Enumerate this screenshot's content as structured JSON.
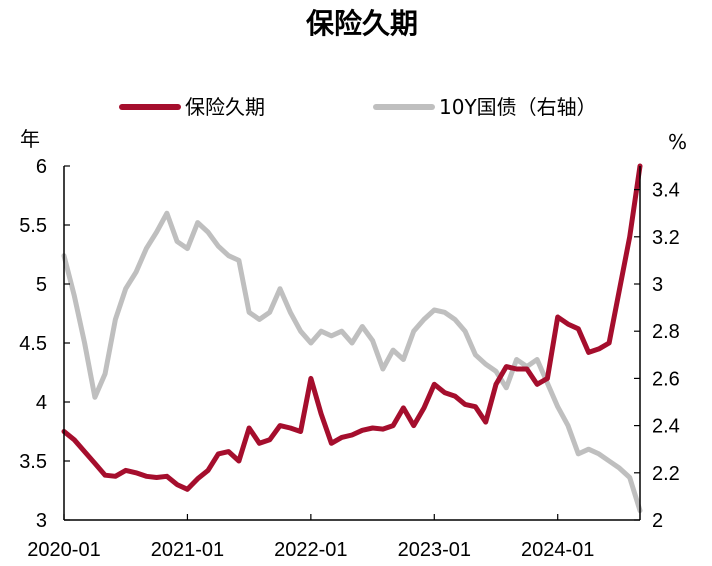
{
  "chart_data": {
    "type": "line",
    "title": "保险久期",
    "left_axis": {
      "unit": "年",
      "ylim": [
        3,
        6
      ],
      "ticks": [
        "3",
        "3.5",
        "4",
        "4.5",
        "5",
        "5.5",
        "6"
      ],
      "tick_values": [
        3,
        3.5,
        4,
        4.5,
        5,
        5.5,
        6
      ]
    },
    "right_axis": {
      "unit": "%",
      "ylim": [
        2,
        3.5
      ],
      "ticks": [
        "2",
        "2.2",
        "2.4",
        "2.6",
        "2.8",
        "3",
        "3.2",
        "3.4"
      ],
      "tick_values": [
        2,
        2.2,
        2.4,
        2.6,
        2.8,
        3,
        3.2,
        3.4
      ]
    },
    "x_axis": {
      "xlim": [
        "2020-01",
        "2024-09"
      ],
      "ticks": [
        "2020-01",
        "2021-01",
        "2022-01",
        "2023-01",
        "2024-01"
      ],
      "tick_values": [
        "2020-01",
        "2021-01",
        "2022-01",
        "2023-01",
        "2024-01"
      ]
    },
    "legend": {
      "placement": "top"
    },
    "grid": false,
    "series": [
      {
        "name": "保险久期",
        "axis": "left",
        "color": "#A50E2D",
        "points": [
          [
            "2020-01",
            3.75
          ],
          [
            "2020-02",
            3.68
          ],
          [
            "2020-03",
            3.58
          ],
          [
            "2020-04",
            3.48
          ],
          [
            "2020-05",
            3.38
          ],
          [
            "2020-06",
            3.37
          ],
          [
            "2020-07",
            3.42
          ],
          [
            "2020-08",
            3.4
          ],
          [
            "2020-09",
            3.37
          ],
          [
            "2020-10",
            3.36
          ],
          [
            "2020-11",
            3.37
          ],
          [
            "2020-12",
            3.3
          ],
          [
            "2021-01",
            3.26
          ],
          [
            "2021-02",
            3.35
          ],
          [
            "2021-03",
            3.42
          ],
          [
            "2021-04",
            3.56
          ],
          [
            "2021-05",
            3.58
          ],
          [
            "2021-06",
            3.5
          ],
          [
            "2021-07",
            3.78
          ],
          [
            "2021-08",
            3.65
          ],
          [
            "2021-09",
            3.68
          ],
          [
            "2021-10",
            3.8
          ],
          [
            "2021-11",
            3.78
          ],
          [
            "2021-12",
            3.75
          ],
          [
            "2022-01",
            4.2
          ],
          [
            "2022-02",
            3.9
          ],
          [
            "2022-03",
            3.65
          ],
          [
            "2022-04",
            3.7
          ],
          [
            "2022-05",
            3.72
          ],
          [
            "2022-06",
            3.76
          ],
          [
            "2022-07",
            3.78
          ],
          [
            "2022-08",
            3.77
          ],
          [
            "2022-09",
            3.8
          ],
          [
            "2022-10",
            3.95
          ],
          [
            "2022-11",
            3.8
          ],
          [
            "2022-12",
            3.95
          ],
          [
            "2023-01",
            4.15
          ],
          [
            "2023-02",
            4.08
          ],
          [
            "2023-03",
            4.05
          ],
          [
            "2023-04",
            3.98
          ],
          [
            "2023-05",
            3.96
          ],
          [
            "2023-06",
            3.83
          ],
          [
            "2023-07",
            4.15
          ],
          [
            "2023-08",
            4.3
          ],
          [
            "2023-09",
            4.28
          ],
          [
            "2023-10",
            4.28
          ],
          [
            "2023-11",
            4.15
          ],
          [
            "2023-12",
            4.2
          ],
          [
            "2024-01",
            4.72
          ],
          [
            "2024-02",
            4.66
          ],
          [
            "2024-03",
            4.62
          ],
          [
            "2024-04",
            4.42
          ],
          [
            "2024-05",
            4.45
          ],
          [
            "2024-06",
            4.5
          ],
          [
            "2024-07",
            4.95
          ],
          [
            "2024-08",
            5.4
          ],
          [
            "2024-09",
            6.0
          ]
        ]
      },
      {
        "name": "10Y国债（右轴）",
        "axis": "right",
        "color": "#BFBFBF",
        "points": [
          [
            "2020-01",
            3.12
          ],
          [
            "2020-02",
            2.95
          ],
          [
            "2020-03",
            2.75
          ],
          [
            "2020-04",
            2.52
          ],
          [
            "2020-05",
            2.62
          ],
          [
            "2020-06",
            2.85
          ],
          [
            "2020-07",
            2.98
          ],
          [
            "2020-08",
            3.05
          ],
          [
            "2020-09",
            3.15
          ],
          [
            "2020-10",
            3.22
          ],
          [
            "2020-11",
            3.3
          ],
          [
            "2020-12",
            3.18
          ],
          [
            "2021-01",
            3.15
          ],
          [
            "2021-02",
            3.26
          ],
          [
            "2021-03",
            3.22
          ],
          [
            "2021-04",
            3.16
          ],
          [
            "2021-05",
            3.12
          ],
          [
            "2021-06",
            3.1
          ],
          [
            "2021-07",
            2.88
          ],
          [
            "2021-08",
            2.85
          ],
          [
            "2021-09",
            2.88
          ],
          [
            "2021-10",
            2.98
          ],
          [
            "2021-11",
            2.88
          ],
          [
            "2021-12",
            2.8
          ],
          [
            "2022-01",
            2.75
          ],
          [
            "2022-02",
            2.8
          ],
          [
            "2022-03",
            2.78
          ],
          [
            "2022-04",
            2.8
          ],
          [
            "2022-05",
            2.75
          ],
          [
            "2022-06",
            2.82
          ],
          [
            "2022-07",
            2.76
          ],
          [
            "2022-08",
            2.64
          ],
          [
            "2022-09",
            2.72
          ],
          [
            "2022-10",
            2.68
          ],
          [
            "2022-11",
            2.8
          ],
          [
            "2022-12",
            2.85
          ],
          [
            "2023-01",
            2.89
          ],
          [
            "2023-02",
            2.88
          ],
          [
            "2023-03",
            2.85
          ],
          [
            "2023-04",
            2.8
          ],
          [
            "2023-05",
            2.7
          ],
          [
            "2023-06",
            2.66
          ],
          [
            "2023-07",
            2.63
          ],
          [
            "2023-08",
            2.56
          ],
          [
            "2023-09",
            2.68
          ],
          [
            "2023-10",
            2.65
          ],
          [
            "2023-11",
            2.68
          ],
          [
            "2023-12",
            2.58
          ],
          [
            "2024-01",
            2.48
          ],
          [
            "2024-02",
            2.4
          ],
          [
            "2024-03",
            2.28
          ],
          [
            "2024-04",
            2.3
          ],
          [
            "2024-05",
            2.28
          ],
          [
            "2024-06",
            2.25
          ],
          [
            "2024-07",
            2.22
          ],
          [
            "2024-08",
            2.18
          ],
          [
            "2024-09",
            2.04
          ]
        ]
      }
    ]
  }
}
